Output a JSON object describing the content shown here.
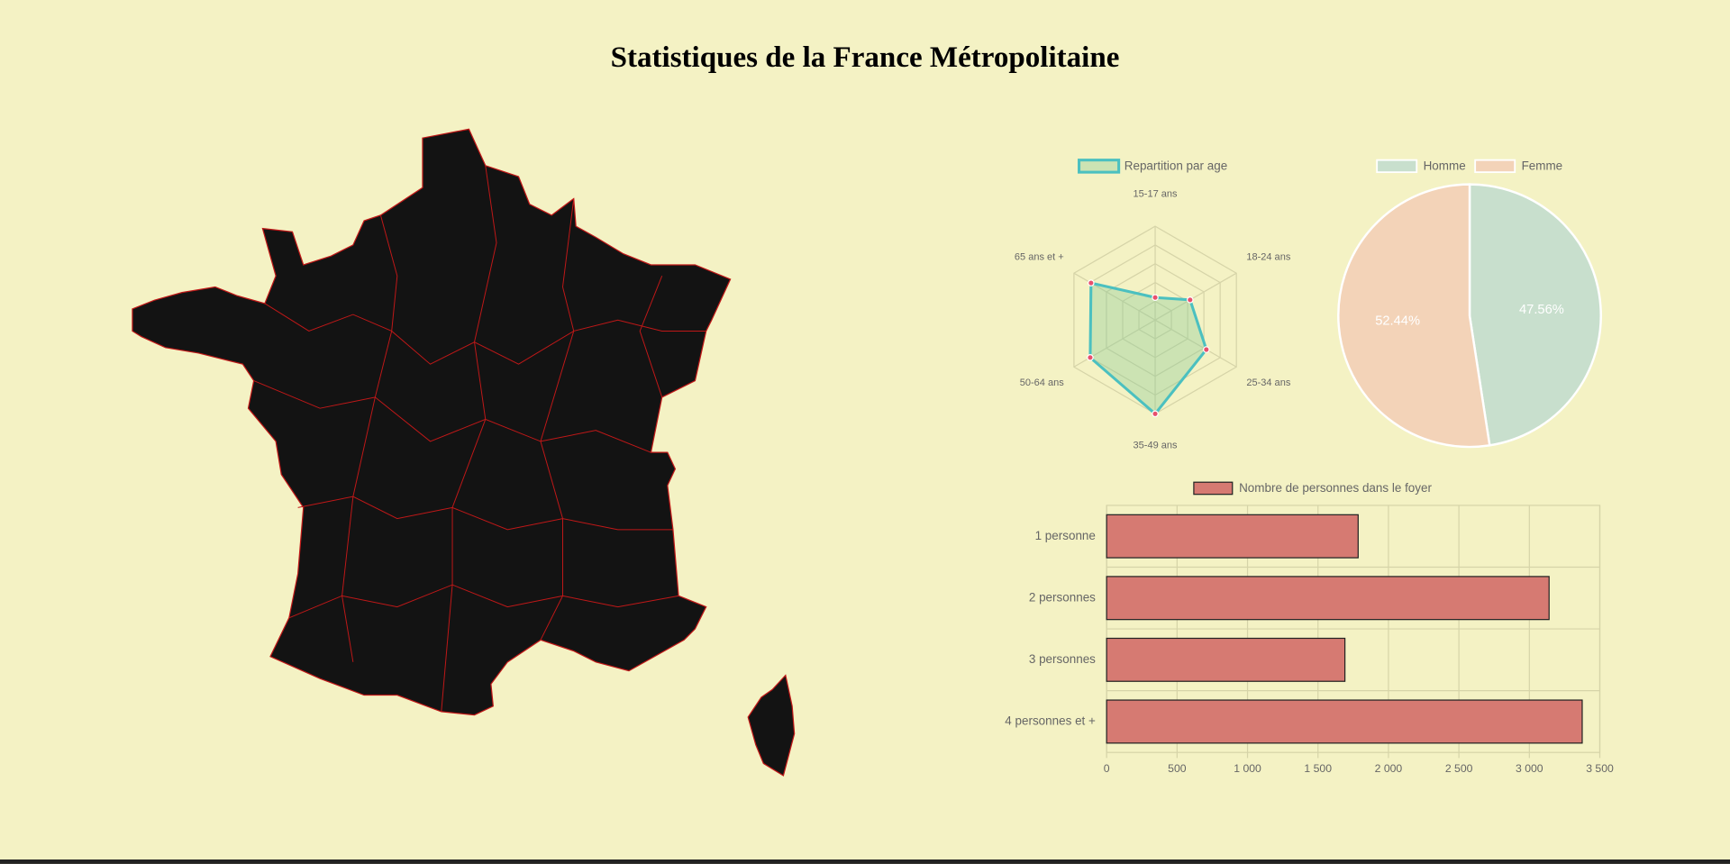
{
  "title": "Statistiques de la France Métropolitaine",
  "chart_data": [
    {
      "type": "radar",
      "categories": [
        "15-17 ans",
        "18-24 ans",
        "25-34 ans",
        "35-49 ans",
        "50-64 ans",
        "65 ans et +"
      ],
      "series": [
        {
          "name": "Repartition par age",
          "color": "#4bc0c0",
          "values": [
            24,
            43,
            63,
            100,
            80,
            79
          ]
        }
      ],
      "rlim": [
        0,
        100
      ],
      "rticks": [
        20,
        40,
        60,
        80,
        100
      ]
    },
    {
      "type": "pie",
      "categories": [
        "Homme",
        "Femme"
      ],
      "values": [
        47.56,
        52.44
      ],
      "value_labels": [
        "47.56%",
        "52.44%"
      ],
      "colors": [
        "#c8dfcd",
        "#f3d3b8"
      ]
    },
    {
      "type": "hbar",
      "categories": [
        "1 personne",
        "2 personnes",
        "3 personnes",
        "4 personnes et +"
      ],
      "series": [
        {
          "name": "Nombre de personnes dans le foyer",
          "color": "#d67a72",
          "values": [
            1785,
            3140,
            1691,
            3375
          ]
        }
      ],
      "xlim": [
        0,
        3500
      ],
      "xticks": [
        0,
        500,
        {
          "value": 1000,
          "label": "1 000"
        },
        {
          "value": 1500,
          "label": "1 500"
        },
        {
          "value": 2000,
          "label": "2 000"
        },
        {
          "value": 2500,
          "label": "2 500"
        },
        {
          "value": 3000,
          "label": "3 000"
        },
        {
          "value": 3500,
          "label": "3 500"
        }
      ],
      "grid": true
    }
  ]
}
